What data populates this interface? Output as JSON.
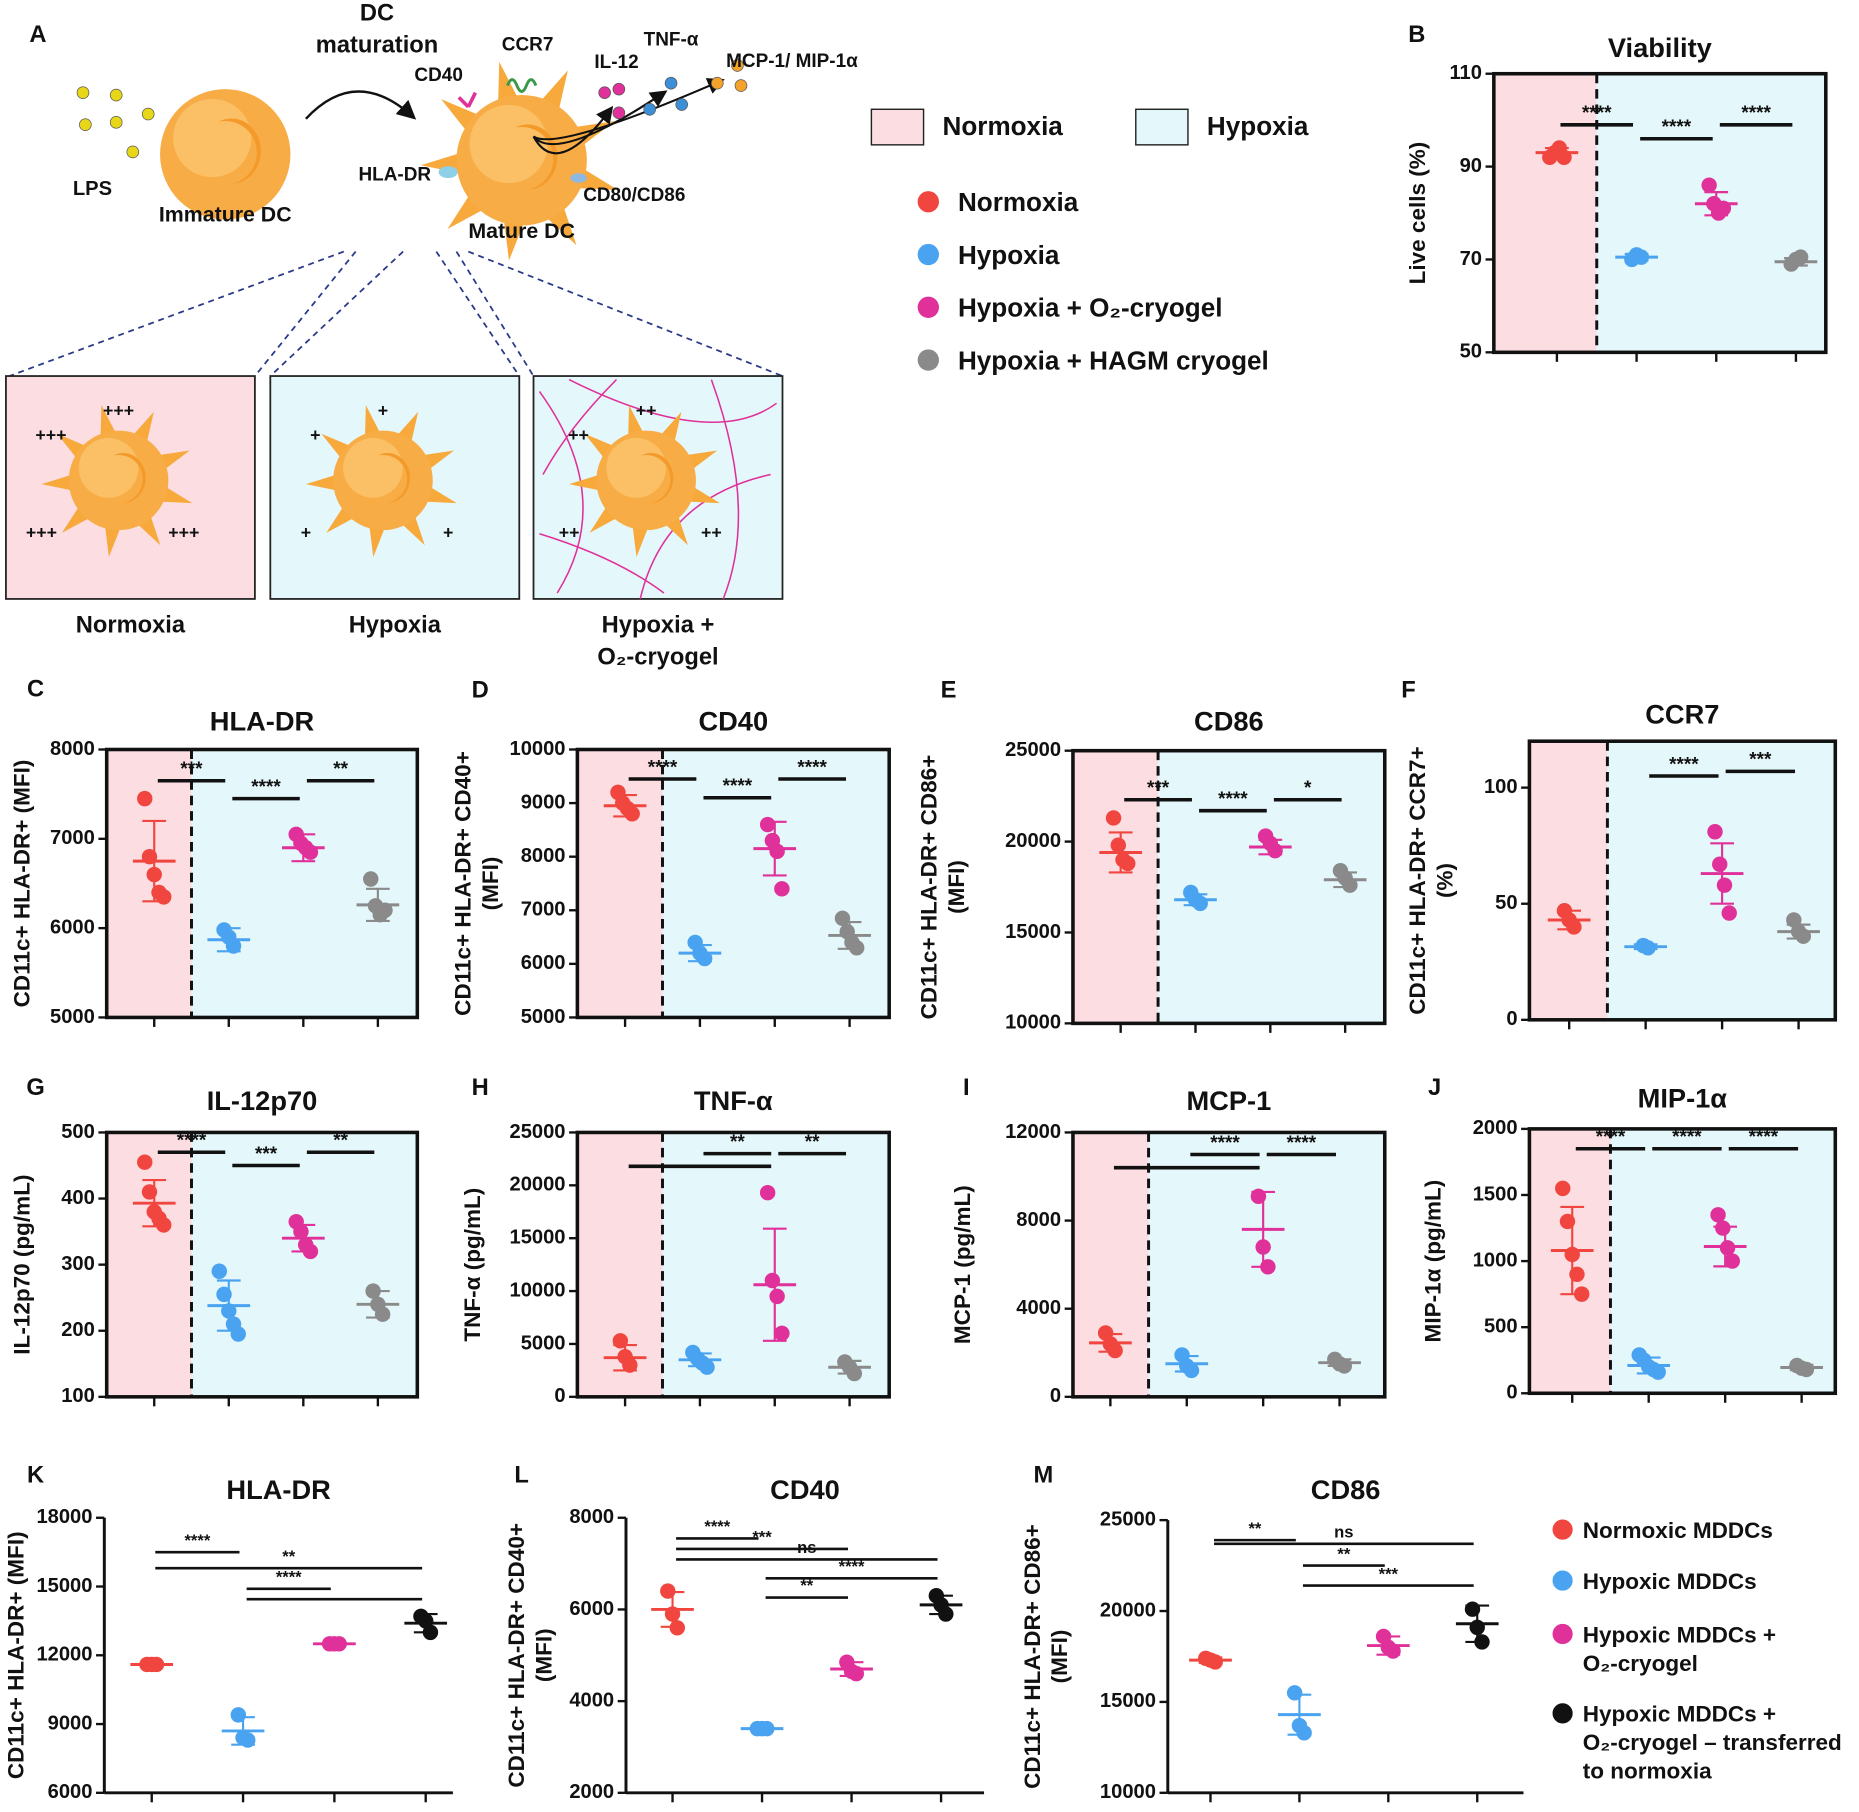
{
  "diagram": {
    "panel": "A",
    "arrow_label": [
      "DC",
      "maturation"
    ],
    "lps": "LPS",
    "immature": "Immature DC",
    "mature": "Mature DC",
    "markers": [
      "CD40",
      "CCR7",
      "IL-12",
      "TNF-α",
      "MCP-1/ MIP-1α",
      "HLA-DR",
      "CD80/CD86"
    ],
    "conditions": [
      {
        "name": [
          "Normoxia"
        ],
        "color": "#e8344a",
        "levels": [
          "+++",
          "+++",
          "+++",
          "+++"
        ]
      },
      {
        "name": [
          "Hypoxia"
        ],
        "color": "#3aa6de",
        "levels": [
          "+",
          "+",
          "+",
          "+"
        ]
      },
      {
        "name": [
          "Hypoxia +",
          "O₂-cryogel"
        ],
        "color": "#e0308f",
        "levels": [
          "++",
          "++",
          "++",
          "++"
        ]
      }
    ]
  },
  "legends": [
    {
      "shades": [
        {
          "name": "Normoxia",
          "color": "#fbdde2"
        },
        {
          "name": "Hypoxia",
          "color": "#e4f7fa"
        }
      ],
      "series": [
        {
          "name": "Normoxia",
          "color": "#f0463f"
        },
        {
          "name": "Hypoxia",
          "color": "#4aa3f0"
        },
        {
          "name": "Hypoxia + O₂-cryogel",
          "color": "#e0309a"
        },
        {
          "name": "Hypoxia + HAGM cryogel",
          "color": "#8a8a8a"
        }
      ]
    },
    {
      "series": [
        {
          "name": "Normoxic MDDCs",
          "color": "#f0463f"
        },
        {
          "name": "Hypoxic MDDCs",
          "color": "#4aa3f0"
        },
        {
          "name": "Hypoxic MDDCs +\nO₂-cryogel",
          "color": "#e0309a"
        },
        {
          "name": "Hypoxic MDDCs +\nO₂-cryogel – transferred\nto normoxia",
          "color": "#111111"
        }
      ]
    }
  ],
  "chart_data": [
    {
      "type": "dotplot",
      "panel": "B",
      "title": "Viability",
      "ylabel": [
        "Live cells (%)"
      ],
      "ylim": [
        50,
        110
      ],
      "yticks": [
        50,
        70,
        90,
        110
      ],
      "shading": true,
      "groups": [
        {
          "color": "#f0463f",
          "values": [
            92,
            93,
            94,
            92
          ],
          "mean": 93,
          "sd": 1
        },
        {
          "color": "#4aa3f0",
          "values": [
            70,
            71,
            70.5
          ],
          "mean": 70.5,
          "sd": 0.7
        },
        {
          "color": "#e0309a",
          "values": [
            86,
            82,
            80,
            81
          ],
          "mean": 82,
          "sd": 2.5
        },
        {
          "color": "#8a8a8a",
          "values": [
            69,
            70,
            70.5
          ],
          "mean": 69.5,
          "sd": 0.8
        }
      ],
      "significance": [
        {
          "from": 0,
          "to": 1,
          "y": 99,
          "label": "****"
        },
        {
          "from": 1,
          "to": 2,
          "y": 96,
          "label": "****"
        },
        {
          "from": 2,
          "to": 3,
          "y": 99,
          "label": "****"
        }
      ]
    },
    {
      "type": "dotplot",
      "panel": "C",
      "title": "HLA-DR",
      "ylabel": [
        "CD11c+ HLA-DR+ (MFI)"
      ],
      "ylim": [
        5000,
        8000
      ],
      "yticks": [
        5000,
        6000,
        7000,
        8000
      ],
      "shading": true,
      "groups": [
        {
          "color": "#f0463f",
          "values": [
            7450,
            6800,
            6600,
            6400,
            6350
          ],
          "mean": 6750,
          "sd": 450
        },
        {
          "color": "#4aa3f0",
          "values": [
            5980,
            5900,
            5800
          ],
          "mean": 5870,
          "sd": 130
        },
        {
          "color": "#e0309a",
          "values": [
            7050,
            6950,
            6900,
            6850
          ],
          "mean": 6900,
          "sd": 150
        },
        {
          "color": "#8a8a8a",
          "values": [
            6550,
            6250,
            6150,
            6200
          ],
          "mean": 6260,
          "sd": 180
        }
      ],
      "significance": [
        {
          "from": 0,
          "to": 1,
          "y": 7650,
          "label": "***"
        },
        {
          "from": 1,
          "to": 2,
          "y": 7450,
          "label": "****"
        },
        {
          "from": 2,
          "to": 3,
          "y": 7650,
          "label": "**"
        }
      ]
    },
    {
      "type": "dotplot",
      "panel": "D",
      "title": "CD40",
      "ylabel": [
        "CD11c+ HLA-DR+ CD40+",
        "(MFI)"
      ],
      "ylim": [
        5000,
        10000
      ],
      "yticks": [
        5000,
        6000,
        7000,
        8000,
        9000,
        10000
      ],
      "shading": true,
      "groups": [
        {
          "color": "#f0463f",
          "values": [
            9200,
            9000,
            8900,
            8800
          ],
          "mean": 8950,
          "sd": 200
        },
        {
          "color": "#4aa3f0",
          "values": [
            6400,
            6200,
            6100
          ],
          "mean": 6200,
          "sd": 150
        },
        {
          "color": "#e0309a",
          "values": [
            8600,
            8300,
            8100,
            7400
          ],
          "mean": 8150,
          "sd": 500
        },
        {
          "color": "#8a8a8a",
          "values": [
            6850,
            6600,
            6400,
            6300
          ],
          "mean": 6530,
          "sd": 250
        }
      ],
      "significance": [
        {
          "from": 0,
          "to": 1,
          "y": 9450,
          "label": "****"
        },
        {
          "from": 1,
          "to": 2,
          "y": 9100,
          "label": "****"
        },
        {
          "from": 2,
          "to": 3,
          "y": 9450,
          "label": "****"
        }
      ]
    },
    {
      "type": "dotplot",
      "panel": "E",
      "title": "CD86",
      "ylabel": [
        "CD11c+ HLA-DR+ CD86+",
        "(MFI)"
      ],
      "ylim": [
        10000,
        25000
      ],
      "yticks": [
        10000,
        15000,
        20000,
        25000
      ],
      "shading": true,
      "groups": [
        {
          "color": "#f0463f",
          "values": [
            21300,
            19800,
            19000,
            18800
          ],
          "mean": 19400,
          "sd": 1100
        },
        {
          "color": "#4aa3f0",
          "values": [
            17200,
            16800,
            16600
          ],
          "mean": 16800,
          "sd": 300
        },
        {
          "color": "#e0309a",
          "values": [
            20300,
            19900,
            19500
          ],
          "mean": 19700,
          "sd": 400
        },
        {
          "color": "#8a8a8a",
          "values": [
            18400,
            18000,
            17600
          ],
          "mean": 17900,
          "sd": 400
        }
      ],
      "significance": [
        {
          "from": 0,
          "to": 1,
          "y": 22300,
          "label": "***"
        },
        {
          "from": 1,
          "to": 2,
          "y": 21700,
          "label": "****"
        },
        {
          "from": 2,
          "to": 3,
          "y": 22300,
          "label": "*"
        }
      ]
    },
    {
      "type": "dotplot",
      "panel": "F",
      "title": "CCR7",
      "ylabel": [
        "CD11c+ HLA-DR+ CCR7+",
        "(%)"
      ],
      "ylim": [
        0,
        120
      ],
      "yticks": [
        0,
        50,
        100
      ],
      "shading": true,
      "groups": [
        {
          "color": "#f0463f",
          "values": [
            47,
            43,
            40
          ],
          "mean": 43,
          "sd": 4
        },
        {
          "color": "#4aa3f0",
          "values": [
            32,
            31
          ],
          "mean": 31.5,
          "sd": 1
        },
        {
          "color": "#e0309a",
          "values": [
            81,
            67,
            58,
            46
          ],
          "mean": 63,
          "sd": 13
        },
        {
          "color": "#8a8a8a",
          "values": [
            43,
            38,
            36
          ],
          "mean": 38,
          "sd": 3
        }
      ],
      "significance": [
        {
          "from": 1,
          "to": 2,
          "y": 105,
          "label": "****"
        },
        {
          "from": 2,
          "to": 3,
          "y": 107,
          "label": "***"
        }
      ]
    },
    {
      "type": "dotplot",
      "panel": "G",
      "title": "IL-12p70",
      "ylabel": [
        "IL-12p70 (pg/mL)"
      ],
      "ylim": [
        100,
        500
      ],
      "yticks": [
        100,
        200,
        300,
        400,
        500
      ],
      "shading": true,
      "groups": [
        {
          "color": "#f0463f",
          "values": [
            455,
            410,
            380,
            370,
            360
          ],
          "mean": 393,
          "sd": 35
        },
        {
          "color": "#4aa3f0",
          "values": [
            290,
            255,
            230,
            210,
            195
          ],
          "mean": 238,
          "sd": 38
        },
        {
          "color": "#e0309a",
          "values": [
            365,
            350,
            330,
            320
          ],
          "mean": 340,
          "sd": 20
        },
        {
          "color": "#8a8a8a",
          "values": [
            260,
            240,
            225
          ],
          "mean": 240,
          "sd": 20
        }
      ],
      "significance": [
        {
          "from": 0,
          "to": 1,
          "y": 470,
          "label": "****"
        },
        {
          "from": 1,
          "to": 2,
          "y": 450,
          "label": "***"
        },
        {
          "from": 2,
          "to": 3,
          "y": 470,
          "label": "**"
        }
      ]
    },
    {
      "type": "dotplot",
      "panel": "H",
      "title": "TNF-α",
      "ylabel": [
        "TNF-α (pg/mL)"
      ],
      "ylim": [
        0,
        25000
      ],
      "yticks": [
        0,
        5000,
        10000,
        15000,
        20000,
        25000
      ],
      "shading": true,
      "groups": [
        {
          "color": "#f0463f",
          "values": [
            5300,
            3800,
            3000
          ],
          "mean": 3700,
          "sd": 1200
        },
        {
          "color": "#4aa3f0",
          "values": [
            4200,
            3600,
            3200,
            2800
          ],
          "mean": 3500,
          "sd": 600
        },
        {
          "color": "#e0309a",
          "values": [
            19300,
            11000,
            9500,
            6000
          ],
          "mean": 10600,
          "sd": 5300
        },
        {
          "color": "#8a8a8a",
          "values": [
            3300,
            2800,
            2200
          ],
          "mean": 2800,
          "sd": 600
        }
      ],
      "significance": [
        {
          "from": 0,
          "to": 2,
          "y": 21800
        },
        {
          "from": 1,
          "to": 2,
          "y": 23000,
          "label": "**"
        },
        {
          "from": 2,
          "to": 3,
          "y": 23000,
          "label": "**"
        }
      ]
    },
    {
      "type": "dotplot",
      "panel": "I",
      "title": "MCP-1",
      "ylabel": [
        "MCP-1 (pg/mL)"
      ],
      "ylim": [
        0,
        12000
      ],
      "yticks": [
        0,
        4000,
        8000,
        12000
      ],
      "shading": true,
      "groups": [
        {
          "color": "#f0463f",
          "values": [
            2900,
            2400,
            2100
          ],
          "mean": 2450,
          "sd": 400
        },
        {
          "color": "#4aa3f0",
          "values": [
            1900,
            1400,
            1200
          ],
          "mean": 1500,
          "sd": 350
        },
        {
          "color": "#e0309a",
          "values": [
            9100,
            6800,
            5900
          ],
          "mean": 7600,
          "sd": 1700
        },
        {
          "color": "#8a8a8a",
          "values": [
            1700,
            1500,
            1400
          ],
          "mean": 1550,
          "sd": 150
        }
      ],
      "significance": [
        {
          "from": 0,
          "to": 2,
          "y": 10400
        },
        {
          "from": 1,
          "to": 2,
          "y": 11000,
          "label": "****"
        },
        {
          "from": 2,
          "to": 3,
          "y": 11000,
          "label": "****"
        }
      ]
    },
    {
      "type": "dotplot",
      "panel": "J",
      "title": "MIP-1α",
      "ylabel": [
        "MIP-1α (pg/mL)"
      ],
      "ylim": [
        0,
        2000
      ],
      "yticks": [
        0,
        500,
        1000,
        1500,
        2000
      ],
      "shading": true,
      "groups": [
        {
          "color": "#f0463f",
          "values": [
            1550,
            1300,
            1050,
            900,
            750
          ],
          "mean": 1080,
          "sd": 330
        },
        {
          "color": "#4aa3f0",
          "values": [
            290,
            250,
            200,
            180,
            160
          ],
          "mean": 210,
          "sd": 60
        },
        {
          "color": "#e0309a",
          "values": [
            1350,
            1250,
            1100,
            1000
          ],
          "mean": 1110,
          "sd": 150
        },
        {
          "color": "#8a8a8a",
          "values": [
            210,
            190,
            180
          ],
          "mean": 195,
          "sd": 20
        }
      ],
      "significance": [
        {
          "from": 0,
          "to": 1,
          "y": 1850,
          "label": "****"
        },
        {
          "from": 1,
          "to": 2,
          "y": 1850,
          "label": "****"
        },
        {
          "from": 2,
          "to": 3,
          "y": 1850,
          "label": "****"
        }
      ]
    },
    {
      "type": "dotplot",
      "panel": "K",
      "title": "HLA-DR",
      "ylabel": [
        "CD11c+ HLA-DR+ (MFI)"
      ],
      "ylim": [
        6000,
        18000
      ],
      "yticks": [
        6000,
        9000,
        12000,
        15000,
        18000
      ],
      "shading": false,
      "groups": [
        {
          "color": "#f0463f",
          "values": [
            11600,
            11600,
            11600
          ],
          "mean": 11600,
          "sd": 50
        },
        {
          "color": "#4aa3f0",
          "values": [
            9400,
            8400,
            8300
          ],
          "mean": 8700,
          "sd": 600
        },
        {
          "color": "#e0309a",
          "values": [
            12500,
            12500,
            12500
          ],
          "mean": 12500,
          "sd": 80
        },
        {
          "color": "#111111",
          "values": [
            13700,
            13500,
            13000
          ],
          "mean": 13400,
          "sd": 400
        }
      ],
      "significance": [
        {
          "from": 0,
          "to": 1,
          "y": 16500,
          "label": "****"
        },
        {
          "from": 0,
          "to": 3,
          "y": 15800,
          "label": "**"
        },
        {
          "from": 1,
          "to": 2,
          "y": 14900,
          "label": "****"
        },
        {
          "from": 1,
          "to": 3,
          "y": 14450
        }
      ]
    },
    {
      "type": "dotplot",
      "panel": "L",
      "title": "CD40",
      "ylabel": [
        "CD11c+ HLA-DR+ CD40+",
        "(MFI)"
      ],
      "ylim": [
        2000,
        8000
      ],
      "yticks": [
        2000,
        4000,
        6000,
        8000
      ],
      "shading": false,
      "groups": [
        {
          "color": "#f0463f",
          "values": [
            6400,
            5900,
            5600
          ],
          "mean": 6000,
          "sd": 380
        },
        {
          "color": "#4aa3f0",
          "values": [
            3400,
            3400,
            3400
          ],
          "mean": 3400,
          "sd": 40
        },
        {
          "color": "#e0309a",
          "values": [
            4850,
            4650,
            4600
          ],
          "mean": 4700,
          "sd": 150
        },
        {
          "color": "#111111",
          "values": [
            6300,
            6100,
            5900
          ],
          "mean": 6100,
          "sd": 200
        }
      ],
      "significance": [
        {
          "from": 0,
          "to": 1,
          "y": 7550,
          "label": "****"
        },
        {
          "from": 0,
          "to": 2,
          "y": 7320,
          "label": "***"
        },
        {
          "from": 0,
          "to": 3,
          "y": 7090,
          "label": "ns"
        },
        {
          "from": 1,
          "to": 3,
          "y": 6680,
          "label": "****"
        },
        {
          "from": 1,
          "to": 2,
          "y": 6260,
          "label": "**"
        }
      ]
    },
    {
      "type": "dotplot",
      "panel": "M",
      "title": "CD86",
      "ylabel": [
        "CD11c+ HLA-DR+ CD86+",
        "(MFI)"
      ],
      "ylim": [
        10000,
        25000
      ],
      "yticks": [
        10000,
        15000,
        20000,
        25000
      ],
      "shading": false,
      "groups": [
        {
          "color": "#f0463f",
          "values": [
            17400,
            17300,
            17200
          ],
          "mean": 17300,
          "sd": 150
        },
        {
          "color": "#4aa3f0",
          "values": [
            15500,
            13700,
            13300
          ],
          "mean": 14300,
          "sd": 1100
        },
        {
          "color": "#e0309a",
          "values": [
            18600,
            18000,
            17800
          ],
          "mean": 18100,
          "sd": 500
        },
        {
          "color": "#111111",
          "values": [
            20100,
            19100,
            18300
          ],
          "mean": 19300,
          "sd": 1000
        }
      ],
      "significance": [
        {
          "from": 0,
          "to": 1,
          "y": 23900,
          "label": "**"
        },
        {
          "from": 0,
          "to": 3,
          "y": 23700,
          "label": "ns"
        },
        {
          "from": 1,
          "to": 2,
          "y": 22500,
          "label": "**"
        },
        {
          "from": 1,
          "to": 3,
          "y": 21400,
          "label": "***"
        }
      ]
    }
  ]
}
